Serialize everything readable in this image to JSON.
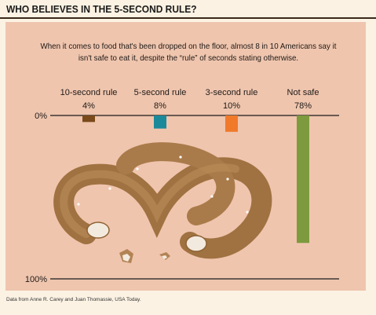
{
  "title": "WHO BELIEVES IN THE 5-SECOND RULE?",
  "subtitle": "When it comes to food that's been dropped on the floor, almost 8 in 10 Americans say it isn't safe to eat it, despite the “rule” of seconds stating otherwise.",
  "source": "Data from Anne R. Carey and Juan Thomassie, USA Today.",
  "colors": {
    "background": "#fbf2e3",
    "panel": "#efc5ae",
    "10-second rule": "#7a4a1a",
    "5-second rule": "#1a8a9a",
    "3-second rule": "#f07a2a",
    "Not safe": "#7d9a3e"
  },
  "chart_data": {
    "type": "bar",
    "orientation": "vertical-downward",
    "categories": [
      "10-second rule",
      "5-second rule",
      "3-second rule",
      "Not safe"
    ],
    "value_labels": [
      "4%",
      "8%",
      "10%",
      "78%"
    ],
    "values": [
      4,
      8,
      10,
      78
    ],
    "axis_tick_labels": [
      "0%",
      "100%"
    ],
    "ylim": [
      0,
      100
    ],
    "grid": false,
    "legend": "none"
  }
}
